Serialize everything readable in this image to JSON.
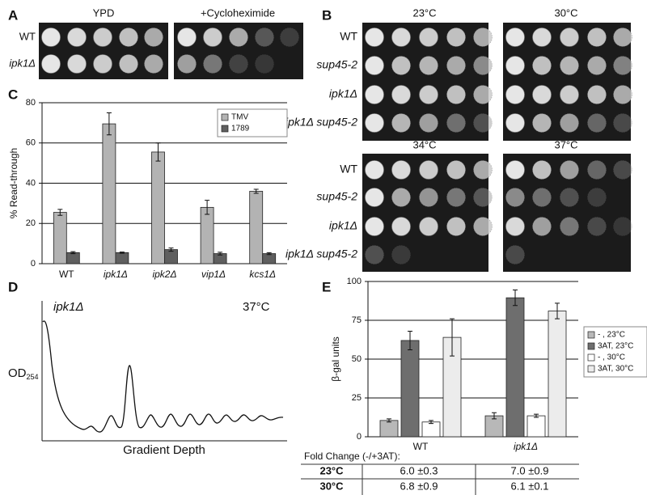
{
  "panel_labels": [
    "A",
    "B",
    "C",
    "D",
    "E"
  ],
  "panel_a": {
    "conditions": [
      "YPD",
      "+Cycloheximide"
    ],
    "strains": [
      "WT",
      "ipk1Δ"
    ]
  },
  "panel_b": {
    "temperatures": [
      "23°C",
      "30°C",
      "34°C",
      "37°C"
    ],
    "strains": [
      "WT",
      "sup45-2",
      "ipk1Δ",
      "ipk1Δ sup45-2"
    ]
  },
  "panel_d": {
    "strain": "ipk1Δ",
    "temperature": "37°C",
    "y_label": "OD",
    "y_label_subscript": "254",
    "x_label": "Gradient Depth"
  },
  "chart_data": [
    {
      "type": "bar",
      "y_label": "% Read-through",
      "categories": [
        "WT",
        "ipk1Δ",
        "ipk2Δ",
        "vip1Δ",
        "kcs1Δ"
      ],
      "series": [
        {
          "name": "TMV",
          "color": "#b3b3b3",
          "values": [
            25.5,
            69.5,
            55.5,
            28,
            36
          ],
          "errors": [
            1.5,
            5.5,
            4.5,
            3.5,
            1
          ]
        },
        {
          "name": "1789",
          "color": "#5f5f5f",
          "values": [
            5.5,
            5.5,
            7,
            5,
            5
          ],
          "errors": [
            0.5,
            0.3,
            0.8,
            0.7,
            0.5
          ]
        }
      ],
      "ylim": [
        0,
        80
      ],
      "yticks": [
        0,
        20,
        40,
        60,
        80
      ],
      "grid": true,
      "legend": "upper right"
    },
    {
      "type": "bar",
      "y_label": "β-gal units",
      "categories": [
        "WT",
        "ipk1Δ"
      ],
      "series": [
        {
          "name": "- , 23°C",
          "color": "#b8b8b8",
          "values": [
            10.5,
            13.5
          ],
          "errors": [
            1,
            2
          ]
        },
        {
          "name": "3AT, 23°C",
          "color": "#6e6e6e",
          "values": [
            62,
            89.5
          ],
          "errors": [
            6,
            5
          ]
        },
        {
          "name": "- , 30°C",
          "color": "#ffffff",
          "values": [
            9.5,
            13.5
          ],
          "errors": [
            1,
            1
          ]
        },
        {
          "name": "3AT, 30°C",
          "color": "#ececec",
          "values": [
            64,
            81
          ],
          "errors": [
            12,
            5
          ]
        }
      ],
      "ylim": [
        0,
        100
      ],
      "yticks": [
        0,
        25,
        50,
        75,
        100
      ],
      "grid": true,
      "legend": "right"
    }
  ],
  "fold_change_table": {
    "title": "Fold Change (-/+3AT):",
    "rows": [
      [
        "23°C",
        "6.0 ±0.3",
        "7.0 ±0.9"
      ],
      [
        "30°C",
        "6.8 ±0.9",
        "6.1 ±0.1"
      ]
    ]
  }
}
